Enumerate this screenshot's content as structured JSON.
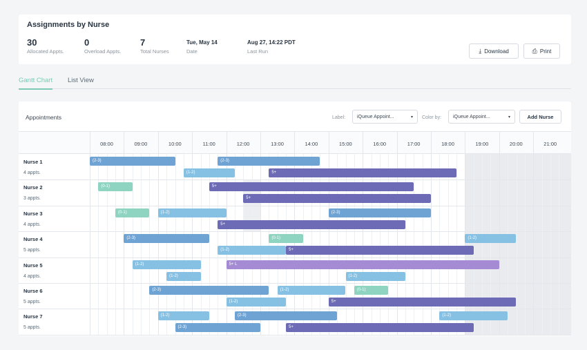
{
  "summary": {
    "title": "Assignments by Nurse",
    "stats": [
      {
        "value": "30",
        "label": "Allocated Appts."
      },
      {
        "value": "0",
        "label": "Overload Appts."
      },
      {
        "value": "7",
        "label": "Total Nurses"
      },
      {
        "value": "Tue, May 14",
        "label": "Date"
      },
      {
        "value": "Aug 27, 14:22 PDT",
        "label": "Last Run"
      }
    ],
    "download_label": "Download",
    "print_label": "Print"
  },
  "tabs": [
    {
      "label": "Gantt Chart",
      "active": true
    },
    {
      "label": "List View",
      "active": false
    }
  ],
  "appointments": {
    "title": "Appointments",
    "label_caption": "Label:",
    "label_value": "iQueue Appoint...",
    "color_caption": "Color by:",
    "color_value": "iQueue Appoint...",
    "add_nurse_label": "Add Nurse"
  },
  "timeline": {
    "hours": [
      "08:00",
      "09:00",
      "10:00",
      "11:00",
      "12:00",
      "13:00",
      "14:00",
      "15:00",
      "16:00",
      "17:00",
      "18:00",
      "19:00",
      "20:00",
      "21:00"
    ]
  },
  "colors": {
    "blue": "#6fa3d4",
    "lightblue": "#86c0e3",
    "teal": "#8fd3c1",
    "indigo": "#6d6bb5",
    "violet": "#a58bd4"
  },
  "nurses": [
    {
      "name": "Nurse 1",
      "count": "4 appts.",
      "appointments": [
        {
          "label": "(2-3)",
          "start": "07:30",
          "end": "10:00",
          "color": "blue",
          "lane": 0
        },
        {
          "label": "(2-3)",
          "start": "11:15",
          "end": "14:15",
          "color": "blue",
          "lane": 0
        },
        {
          "label": "(1-2)",
          "start": "10:15",
          "end": "11:45",
          "color": "lightblue",
          "lane": 1
        },
        {
          "label": "5+",
          "start": "12:45",
          "end": "18:15",
          "color": "indigo",
          "lane": 1
        }
      ]
    },
    {
      "name": "Nurse 2",
      "count": "3 appts.",
      "appointments": [
        {
          "label": "(0-1)",
          "start": "07:45",
          "end": "08:45",
          "color": "teal",
          "lane": 0
        },
        {
          "label": "5+",
          "start": "11:00",
          "end": "17:00",
          "color": "indigo",
          "lane": 0
        },
        {
          "label": "5+",
          "start": "12:00",
          "end": "17:30",
          "color": "indigo",
          "lane": 1
        }
      ]
    },
    {
      "name": "Nurse 3",
      "count": "4 appts.",
      "appointments": [
        {
          "label": "(0-1)",
          "start": "08:15",
          "end": "09:15",
          "color": "teal",
          "lane": 0
        },
        {
          "label": "(1-2)",
          "start": "09:30",
          "end": "11:30",
          "color": "lightblue",
          "lane": 0
        },
        {
          "label": "(2-3)",
          "start": "14:30",
          "end": "17:30",
          "color": "blue",
          "lane": 0
        },
        {
          "label": "5+",
          "start": "11:15",
          "end": "16:45",
          "color": "indigo",
          "lane": 1
        }
      ]
    },
    {
      "name": "Nurse 4",
      "count": "5 appts.",
      "appointments": [
        {
          "label": "(2-3)",
          "start": "08:30",
          "end": "11:00",
          "color": "blue",
          "lane": 0
        },
        {
          "label": "(0-1)",
          "start": "12:45",
          "end": "13:45",
          "color": "teal",
          "lane": 0
        },
        {
          "label": "(1-2)",
          "start": "18:30",
          "end": "20:00",
          "color": "lightblue",
          "lane": 0
        },
        {
          "label": "(1-2)",
          "start": "11:15",
          "end": "13:15",
          "color": "lightblue",
          "lane": 1
        },
        {
          "label": "5+",
          "start": "13:15",
          "end": "18:45",
          "color": "indigo",
          "lane": 1
        }
      ]
    },
    {
      "name": "Nurse 5",
      "count": "4 appts.",
      "appointments": [
        {
          "label": "(1-2)",
          "start": "08:45",
          "end": "10:45",
          "color": "lightblue",
          "lane": 0
        },
        {
          "label": "5+ L",
          "start": "11:30",
          "end": "19:30",
          "color": "violet",
          "lane": 0
        },
        {
          "label": "(1-2)",
          "start": "09:45",
          "end": "10:45",
          "color": "lightblue",
          "lane": 1
        },
        {
          "label": "(1-2)",
          "start": "15:00",
          "end": "16:45",
          "color": "lightblue",
          "lane": 1
        }
      ]
    },
    {
      "name": "Nurse 6",
      "count": "5 appts.",
      "appointments": [
        {
          "label": "(2-3)",
          "start": "09:15",
          "end": "12:45",
          "color": "blue",
          "lane": 0
        },
        {
          "label": "(1-2)",
          "start": "13:00",
          "end": "15:00",
          "color": "lightblue",
          "lane": 0
        },
        {
          "label": "(0-1)",
          "start": "15:15",
          "end": "16:15",
          "color": "teal",
          "lane": 0
        },
        {
          "label": "(1-2)",
          "start": "11:30",
          "end": "13:15",
          "color": "lightblue",
          "lane": 1
        },
        {
          "label": "5+",
          "start": "14:30",
          "end": "20:00",
          "color": "indigo",
          "lane": 1
        }
      ]
    },
    {
      "name": "Nurse 7",
      "count": "5 appts.",
      "appointments": [
        {
          "label": "(1-2)",
          "start": "09:30",
          "end": "11:00",
          "color": "lightblue",
          "lane": 0
        },
        {
          "label": "(2-3)",
          "start": "11:45",
          "end": "14:45",
          "color": "blue",
          "lane": 0
        },
        {
          "label": "(1-2)",
          "start": "17:45",
          "end": "19:45",
          "color": "lightblue",
          "lane": 0
        },
        {
          "label": "(2-3)",
          "start": "10:00",
          "end": "12:30",
          "color": "blue",
          "lane": 1
        },
        {
          "label": "5+",
          "start": "13:15",
          "end": "18:45",
          "color": "indigo",
          "lane": 1
        }
      ]
    }
  ]
}
